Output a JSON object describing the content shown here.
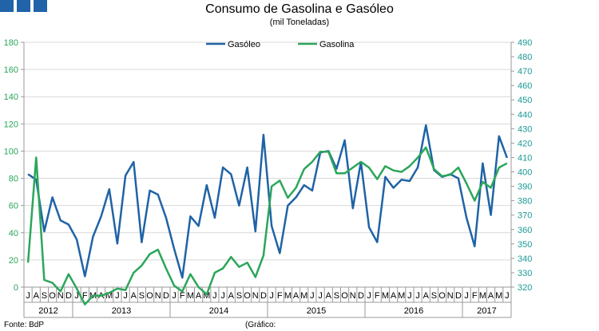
{
  "header": {
    "title": "Consumo de Gasolina e Gasóleo",
    "subtitle": "(mil Toneladas)"
  },
  "footer": {
    "source": "Fonte: BdP",
    "graph_label": "(Gráfico:"
  },
  "chart_data": {
    "type": "line",
    "title": "Consumo de Gasolina e Gasóleo",
    "subtitle": "(mil Toneladas)",
    "x": [
      "J",
      "A",
      "S",
      "O",
      "N",
      "D",
      "J",
      "F",
      "M",
      "A",
      "M",
      "J",
      "J",
      "A",
      "S",
      "O",
      "N",
      "D",
      "J",
      "F",
      "M",
      "A",
      "M",
      "J",
      "J",
      "A",
      "S",
      "O",
      "N",
      "D",
      "J",
      "F",
      "M",
      "A",
      "M",
      "J",
      "J",
      "A",
      "S",
      "O",
      "N",
      "D",
      "J",
      "F",
      "M",
      "A",
      "M",
      "J",
      "J",
      "A",
      "S",
      "O",
      "N",
      "D",
      "J",
      "F",
      "M",
      "A",
      "M",
      "J"
    ],
    "year_labels": [
      {
        "label": "2012",
        "start": 0,
        "end": 5
      },
      {
        "label": "2013",
        "start": 6,
        "end": 17
      },
      {
        "label": "2014",
        "start": 18,
        "end": 29
      },
      {
        "label": "2015",
        "start": 30,
        "end": 41
      },
      {
        "label": "2016",
        "start": 42,
        "end": 53
      },
      {
        "label": "2017",
        "start": 54,
        "end": 59
      }
    ],
    "series": [
      {
        "name": "Gasóleo",
        "axis": "left",
        "color": "#1f63a6",
        "values": [
          83,
          79,
          41,
          66,
          49,
          46,
          35,
          8,
          37,
          52,
          72,
          32,
          82,
          92,
          33,
          71,
          68,
          51,
          28,
          7,
          52,
          45,
          75,
          51,
          88,
          83,
          60,
          88,
          41,
          112,
          45,
          25,
          60,
          66,
          75,
          71,
          99,
          100,
          87,
          108,
          58,
          92,
          44,
          33,
          81,
          73,
          79,
          78,
          88,
          119,
          86,
          81,
          83,
          80,
          51,
          30,
          91,
          53,
          111,
          95
        ]
      },
      {
        "name": "Gasolina",
        "axis": "right",
        "color": "#2ba65a",
        "values": [
          337,
          410,
          325,
          323,
          317,
          329,
          319,
          308,
          314,
          314,
          316,
          319,
          318,
          330,
          335,
          343,
          346,
          333,
          321,
          317,
          329,
          320,
          315,
          330,
          333,
          341,
          334,
          337,
          327,
          342,
          390,
          394,
          382,
          389,
          402,
          407,
          414,
          414,
          399,
          399,
          403,
          407,
          403,
          395,
          404,
          401,
          400,
          404,
          410,
          417,
          402,
          397,
          398,
          403,
          392,
          380,
          393,
          389,
          403,
          406
        ]
      }
    ],
    "y_left": {
      "min": 0,
      "max": 180,
      "ticks": [
        0,
        20,
        40,
        60,
        80,
        100,
        120,
        140,
        160,
        180
      ]
    },
    "y_right": {
      "min": 320,
      "max": 490,
      "ticks": [
        320,
        330,
        340,
        350,
        360,
        370,
        380,
        390,
        400,
        410,
        420,
        430,
        440,
        450,
        460,
        470,
        480,
        490
      ]
    },
    "grid": true,
    "legend": "top-center",
    "colors": {
      "left_axis": "#2ba65a",
      "right_axis": "#1a9a95",
      "grid": "#d9d9d9",
      "axis": "#999999"
    }
  }
}
